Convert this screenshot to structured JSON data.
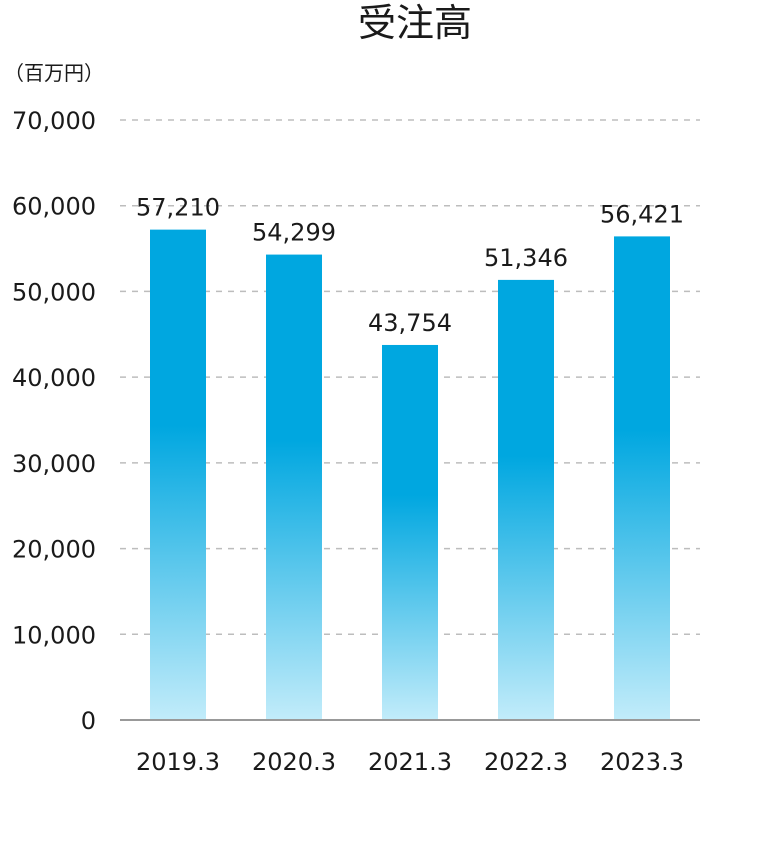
{
  "chart_data": {
    "type": "bar",
    "title": "受注高",
    "unit_label": "（百万円）",
    "categories": [
      "2019.3",
      "2020.3",
      "2021.3",
      "2022.3",
      "2023.3"
    ],
    "values": [
      57210,
      54299,
      43754,
      51346,
      56421
    ],
    "value_labels": [
      "57,210",
      "54,299",
      "43,754",
      "51,346",
      "56,421"
    ],
    "y_ticks": [
      0,
      10000,
      20000,
      30000,
      40000,
      50000,
      60000,
      70000
    ],
    "y_tick_labels": [
      "0",
      "10,000",
      "20,000",
      "30,000",
      "40,000",
      "50,000",
      "60,000",
      "70,000"
    ],
    "ylim": [
      0,
      70000
    ],
    "grid": true,
    "legend": false,
    "colors": {
      "bar_top": "#00a7e0",
      "bar_bottom": "#c2ecfa",
      "grid": "#bdbdbd",
      "axis": "#999999",
      "text": "#1a1a1a"
    }
  }
}
